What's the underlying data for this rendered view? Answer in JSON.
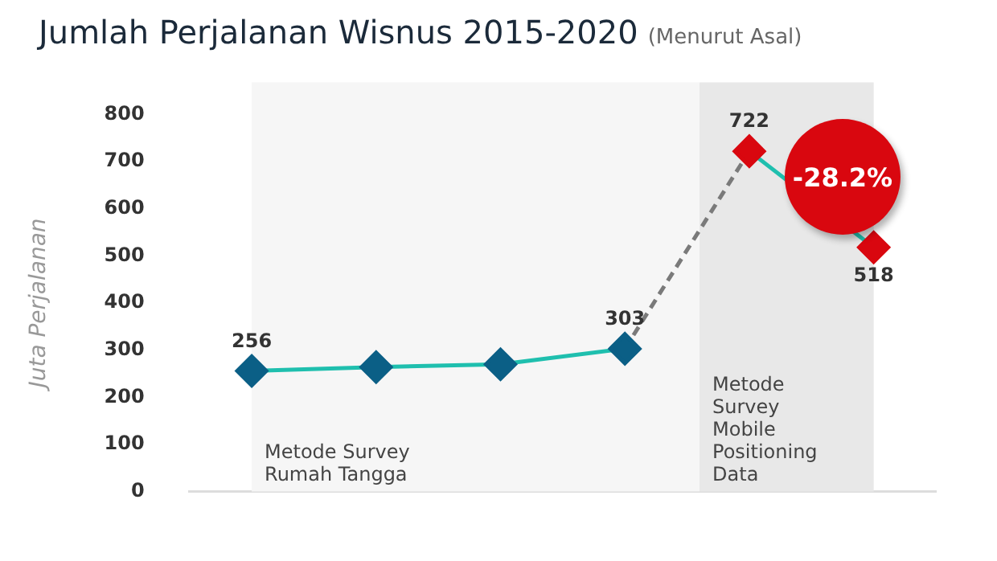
{
  "chart_data": {
    "type": "line",
    "title": "Jumlah Perjalanan Wisnus 2015-2020",
    "subtitle": "(Menurut Asal)",
    "ylabel": "Juta Perjalanan",
    "categories": [
      null,
      null,
      null,
      null,
      null,
      null
    ],
    "series": [
      {
        "color": "#1fbfae",
        "colors": [
          "#0b5f86",
          "#0b5f86",
          "#0b5f86",
          "#0b5f86",
          null,
          null
        ],
        "values": [
          256,
          264,
          270,
          303,
          null,
          null
        ],
        "value_labels": [
          "256",
          null,
          null,
          "303",
          null,
          null
        ],
        "marker": "diamond"
      },
      {
        "color": "#1fbfae",
        "colors": [
          null,
          null,
          null,
          null,
          "#d9070f",
          "#d9070f"
        ],
        "values": [
          null,
          null,
          null,
          null,
          722,
          518
        ],
        "value_labels": [
          null,
          null,
          null,
          null,
          "722",
          "518"
        ],
        "marker": "diamond"
      },
      {
        "color": "#7a7a7a",
        "values": [
          null,
          null,
          null,
          303,
          722,
          null
        ],
        "marker": "none",
        "line_style": "dashed"
      }
    ],
    "annotations": [
      "Metode Survey\nRumah Tangga",
      "Metode\nSurvey\nMobile\nPositioning\nData",
      "-28.2%"
    ],
    "ylim": [
      0,
      800
    ],
    "yticks": [
      0,
      100,
      200,
      300,
      400,
      500,
      600,
      700,
      800
    ],
    "grid": false,
    "legend": false,
    "tick_labels": "y"
  }
}
